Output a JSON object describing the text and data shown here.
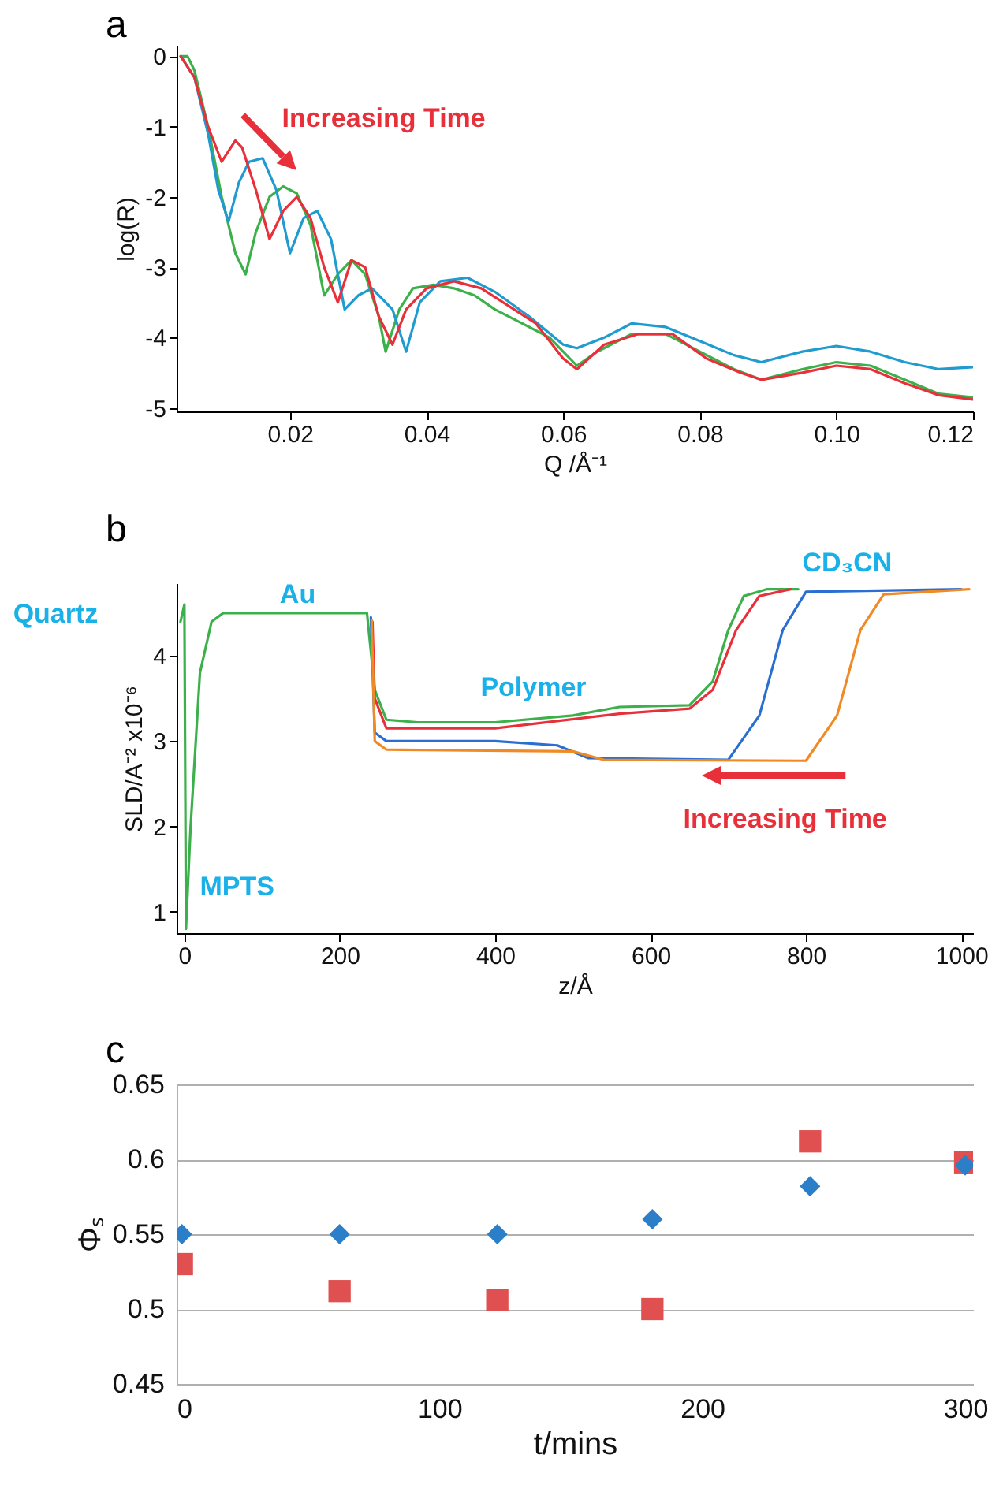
{
  "chart_data": [
    {
      "type": "line",
      "title": "a",
      "xlabel": "Q /Å⁻¹",
      "ylabel": "log(R)",
      "xlim": [
        0.0034,
        0.12
      ],
      "ylim": [
        -5.05,
        0.15
      ],
      "xticks": [
        0.02,
        0.04,
        0.06,
        0.08,
        {
          "value": 0.1,
          "label": "0.10"
        },
        0.12
      ],
      "yticks": [
        -5,
        -4,
        -3,
        -2,
        -1,
        0
      ],
      "grid": false,
      "marker": "none",
      "line_style": "solid",
      "annotations": [
        "Increasing Time"
      ],
      "series": [
        {
          "color": "#3cb04a",
          "x": [
            0.004,
            0.005,
            0.006,
            0.008,
            0.01,
            0.012,
            0.0135,
            0.015,
            0.017,
            0.019,
            0.021,
            0.023,
            0.025,
            0.027,
            0.029,
            0.031,
            0.033,
            0.034,
            0.036,
            0.038,
            0.041,
            0.044,
            0.047,
            0.05,
            0.055,
            0.058,
            0.062,
            0.065,
            0.07,
            0.075,
            0.08,
            0.085,
            0.089,
            0.095,
            0.1,
            0.105,
            0.11,
            0.115,
            0.12
          ],
          "values": [
            0,
            0,
            -0.2,
            -1.0,
            -2.0,
            -2.8,
            -3.1,
            -2.5,
            -2.0,
            -1.85,
            -1.95,
            -2.4,
            -3.4,
            -3.1,
            -2.9,
            -3.1,
            -3.7,
            -4.2,
            -3.6,
            -3.3,
            -3.25,
            -3.3,
            -3.4,
            -3.6,
            -3.85,
            -4.0,
            -4.4,
            -4.2,
            -3.95,
            -3.95,
            -4.2,
            -4.45,
            -4.6,
            -4.45,
            -4.35,
            -4.4,
            -4.6,
            -4.8,
            -4.85
          ]
        },
        {
          "color": "#1f9bd0",
          "x": [
            0.004,
            0.006,
            0.008,
            0.0095,
            0.011,
            0.0125,
            0.014,
            0.016,
            0.018,
            0.02,
            0.022,
            0.024,
            0.026,
            0.028,
            0.03,
            0.032,
            0.035,
            0.037,
            0.039,
            0.042,
            0.046,
            0.05,
            0.055,
            0.06,
            0.062,
            0.066,
            0.07,
            0.075,
            0.08,
            0.085,
            0.089,
            0.095,
            0.1,
            0.105,
            0.11,
            0.115,
            0.12
          ],
          "values": [
            0,
            -0.3,
            -1.1,
            -1.9,
            -2.35,
            -1.8,
            -1.5,
            -1.45,
            -1.9,
            -2.8,
            -2.3,
            -2.2,
            -2.6,
            -3.6,
            -3.4,
            -3.3,
            -3.6,
            -4.2,
            -3.5,
            -3.2,
            -3.15,
            -3.35,
            -3.7,
            -4.1,
            -4.15,
            -4.0,
            -3.8,
            -3.85,
            -4.05,
            -4.25,
            -4.35,
            -4.2,
            -4.12,
            -4.2,
            -4.35,
            -4.45,
            -4.42
          ]
        },
        {
          "color": "#e8303a",
          "x": [
            0.004,
            0.006,
            0.008,
            0.01,
            0.012,
            0.013,
            0.015,
            0.017,
            0.019,
            0.021,
            0.023,
            0.025,
            0.027,
            0.029,
            0.031,
            0.033,
            0.035,
            0.037,
            0.04,
            0.044,
            0.048,
            0.052,
            0.056,
            0.06,
            0.062,
            0.066,
            0.071,
            0.076,
            0.081,
            0.086,
            0.089,
            0.095,
            0.1,
            0.105,
            0.11,
            0.115,
            0.12
          ],
          "values": [
            0,
            -0.3,
            -1.0,
            -1.5,
            -1.2,
            -1.3,
            -1.9,
            -2.6,
            -2.2,
            -2.0,
            -2.3,
            -3.0,
            -3.5,
            -2.9,
            -3.0,
            -3.7,
            -4.1,
            -3.6,
            -3.3,
            -3.2,
            -3.3,
            -3.55,
            -3.8,
            -4.3,
            -4.45,
            -4.1,
            -3.95,
            -3.95,
            -4.3,
            -4.5,
            -4.6,
            -4.5,
            -4.4,
            -4.45,
            -4.65,
            -4.82,
            -4.88
          ]
        }
      ]
    },
    {
      "type": "line",
      "title": "b",
      "xlabel": "z/Å",
      "ylabel": "SLD/A⁻² x10⁻⁶",
      "xlim": [
        -10,
        1015
      ],
      "ylim": [
        0.75,
        4.85
      ],
      "xticks": [
        0,
        200,
        400,
        600,
        800,
        1000
      ],
      "yticks": [
        {
          "value": 1,
          "label": "1"
        },
        {
          "value": 2,
          "label": "2"
        },
        {
          "value": 3,
          "label": "3"
        },
        {
          "value": 4,
          "label": "4"
        }
      ],
      "grid": false,
      "marker": "none",
      "line_style": "solid",
      "annotations": [
        "Quartz",
        "Au",
        "Polymer",
        "CD₃CN",
        "MPTS",
        "Increasing Time"
      ],
      "series": [
        {
          "color": "#3cb04a",
          "x": [
            -5,
            0,
            2,
            8,
            20,
            35,
            50,
            235,
            245,
            260,
            300,
            400,
            500,
            560,
            650,
            680,
            700,
            720,
            750,
            790
          ],
          "values": [
            4.4,
            4.6,
            0.8,
            2.0,
            3.8,
            4.4,
            4.5,
            4.5,
            3.6,
            3.25,
            3.22,
            3.22,
            3.3,
            3.4,
            3.42,
            3.7,
            4.3,
            4.7,
            4.78,
            4.78
          ]
        },
        {
          "color": "#e8303a",
          "x": [
            242,
            245,
            260,
            400,
            560,
            650,
            680,
            710,
            740,
            780
          ],
          "values": [
            4.4,
            3.5,
            3.15,
            3.15,
            3.32,
            3.38,
            3.6,
            4.3,
            4.7,
            4.78
          ]
        },
        {
          "color": "#2a6fd0",
          "x": [
            240,
            245,
            260,
            400,
            480,
            520,
            700,
            740,
            770,
            800,
            1000
          ],
          "values": [
            4.45,
            3.1,
            3.0,
            3.0,
            2.95,
            2.8,
            2.78,
            3.3,
            4.3,
            4.75,
            4.78
          ]
        },
        {
          "color": "#f08a24",
          "x": [
            241,
            245,
            260,
            500,
            540,
            800,
            840,
            870,
            900,
            1010
          ],
          "values": [
            4.42,
            3.0,
            2.9,
            2.88,
            2.78,
            2.77,
            3.3,
            4.3,
            4.72,
            4.78
          ]
        }
      ]
    },
    {
      "type": "scatter",
      "title": "c",
      "xlabel": "t/mins",
      "ylabel": "Φₛ",
      "xlim": [
        0,
        303
      ],
      "ylim": [
        0.45,
        0.65
      ],
      "xticks": [
        0,
        100,
        200,
        300
      ],
      "yticks": [
        0.45,
        {
          "value": 0.5,
          "label": "0.5"
        },
        0.55,
        {
          "value": 0.6,
          "label": "0.6"
        },
        0.65
      ],
      "grid": "y",
      "series": [
        {
          "color": "#e05050",
          "marker": "square",
          "x": [
            2,
            62,
            122,
            181,
            241,
            300
          ],
          "values": [
            0.53,
            0.512,
            0.506,
            0.5,
            0.612,
            0.598
          ]
        },
        {
          "color": "#2a7fc8",
          "marker": "diamond",
          "x": [
            2,
            62,
            122,
            181,
            241,
            300
          ],
          "values": [
            0.55,
            0.55,
            0.55,
            0.56,
            0.582,
            0.596
          ]
        }
      ]
    }
  ]
}
